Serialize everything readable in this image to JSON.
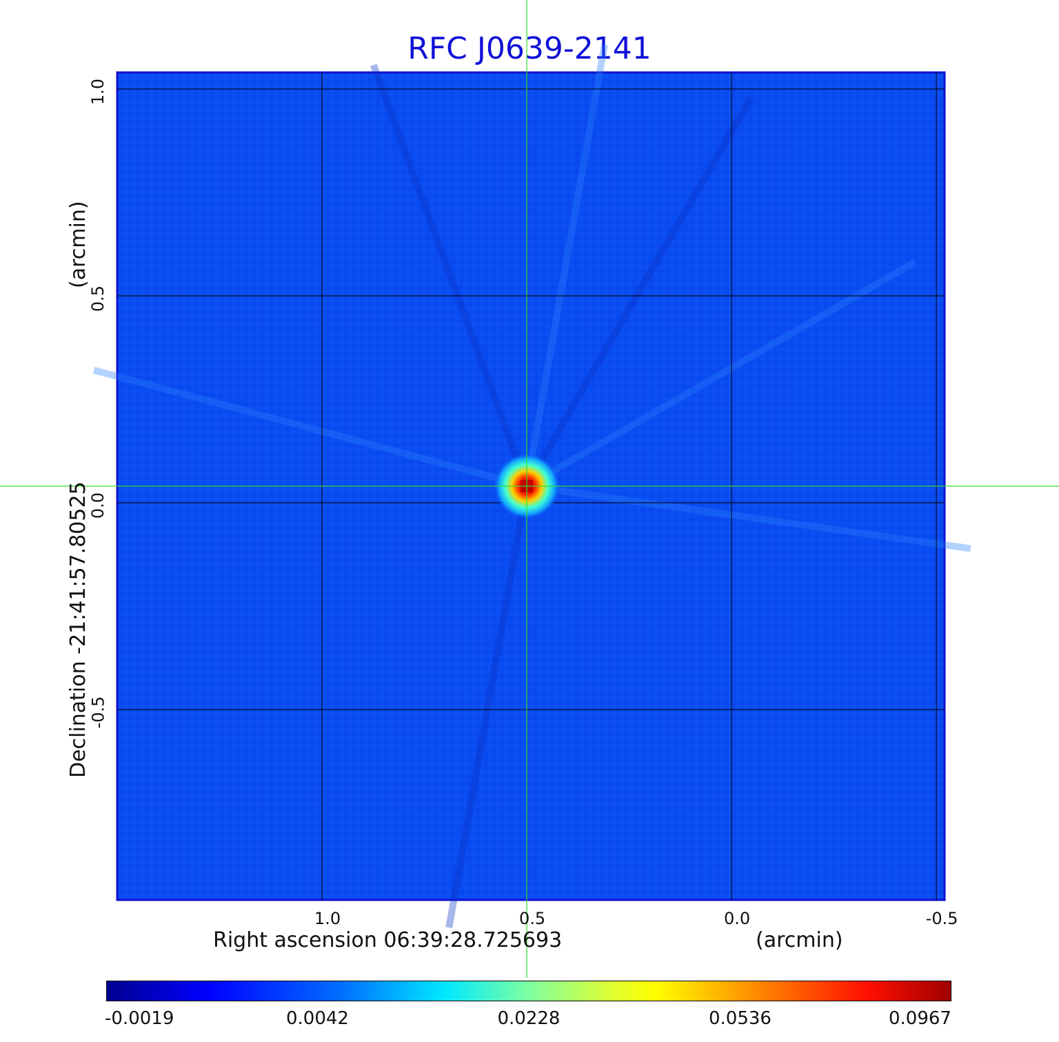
{
  "chart_data": {
    "type": "heatmap",
    "title": "RFC J0639-2141",
    "xlabel": "Right ascension  06:39:28.725693",
    "xlabel_unit": "(arcmin)",
    "ylabel": "Declination  -21:41:57.80525",
    "ylabel_unit": "(arcmin)",
    "x_ticks": [
      "1.0",
      "0.5",
      "0.0",
      "-0.5"
    ],
    "y_ticks": [
      "1.0",
      "0.5",
      "0.0",
      "-0.5"
    ],
    "xlim": [
      1.5,
      -0.52
    ],
    "ylim": [
      -0.96,
      1.04
    ],
    "grid": true,
    "colormap": "jet",
    "colorbar_ticks": [
      "-0.0019",
      "0.0042",
      "0.0228",
      "0.0536",
      "0.0967"
    ],
    "peak": {
      "x": 0.5,
      "y": 0.04,
      "value": 0.0967
    },
    "crosshair": {
      "x": 0.5,
      "y": 0.04,
      "color": "#33dd33"
    }
  }
}
